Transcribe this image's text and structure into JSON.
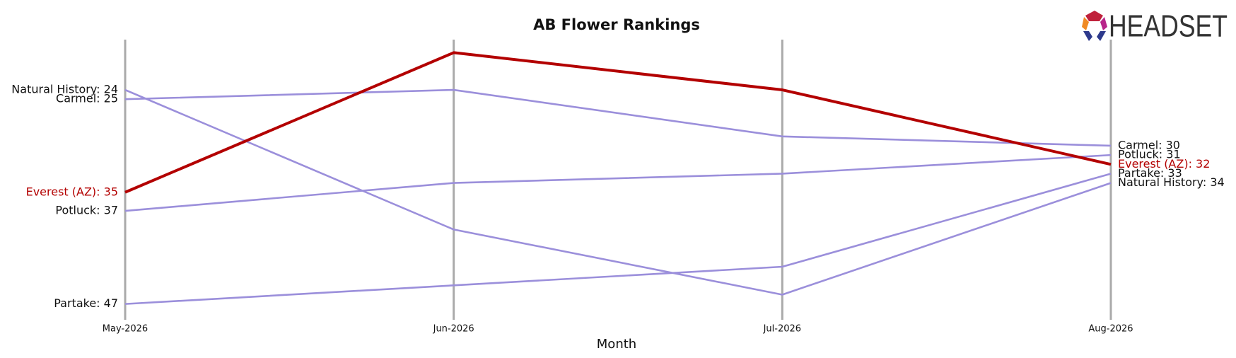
{
  "chart_data": {
    "type": "line",
    "title": "AB Flower Rankings",
    "xlabel": "Month",
    "logo": "HEADSET",
    "categories": [
      "May-2026",
      "Jun-2026",
      "Jul-2026",
      "Aug-2026"
    ],
    "ylim": [
      18.6,
      48.7
    ],
    "y_inverted": true,
    "series": [
      {
        "name": "Carmel",
        "color": "#9b8fdb",
        "values": [
          25,
          24,
          29,
          30
        ],
        "value_labels": [
          "Carmel: 25",
          null,
          null,
          "Carmel: 30"
        ]
      },
      {
        "name": "Natural History",
        "color": "#9b8fdb",
        "values": [
          24,
          39,
          46,
          34
        ],
        "value_labels": [
          "Natural History: 24",
          null,
          null,
          "Natural History: 34"
        ]
      },
      {
        "name": "Potluck",
        "color": "#9b8fdb",
        "values": [
          37,
          34,
          33,
          31
        ],
        "value_labels": [
          "Potluck: 37",
          null,
          null,
          "Potluck: 31"
        ]
      },
      {
        "name": "Partake",
        "color": "#9b8fdb",
        "values": [
          47,
          45,
          43,
          33
        ],
        "value_labels": [
          "Partake: 47",
          null,
          null,
          "Partake: 33"
        ]
      },
      {
        "name": "Everest (AZ)",
        "color": "#b30000",
        "values": [
          35,
          20,
          24,
          32
        ],
        "value_labels": [
          "Everest (AZ): 35",
          null,
          null,
          "Everest (AZ): 32"
        ]
      }
    ]
  }
}
